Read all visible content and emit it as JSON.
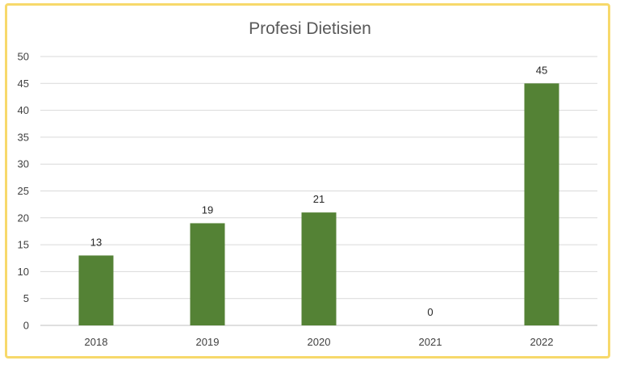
{
  "chart_data": {
    "type": "bar",
    "title": "Profesi Dietisien",
    "categories": [
      "2018",
      "2019",
      "2020",
      "2021",
      "2022"
    ],
    "values": [
      13,
      19,
      21,
      0,
      45
    ],
    "ylim": [
      0,
      50
    ],
    "yticks": [
      0,
      5,
      10,
      15,
      20,
      25,
      30,
      35,
      40,
      45,
      50
    ],
    "grid": true,
    "legend": "none",
    "colors": {
      "bar": "#548235",
      "border": "#f7d96b"
    }
  }
}
